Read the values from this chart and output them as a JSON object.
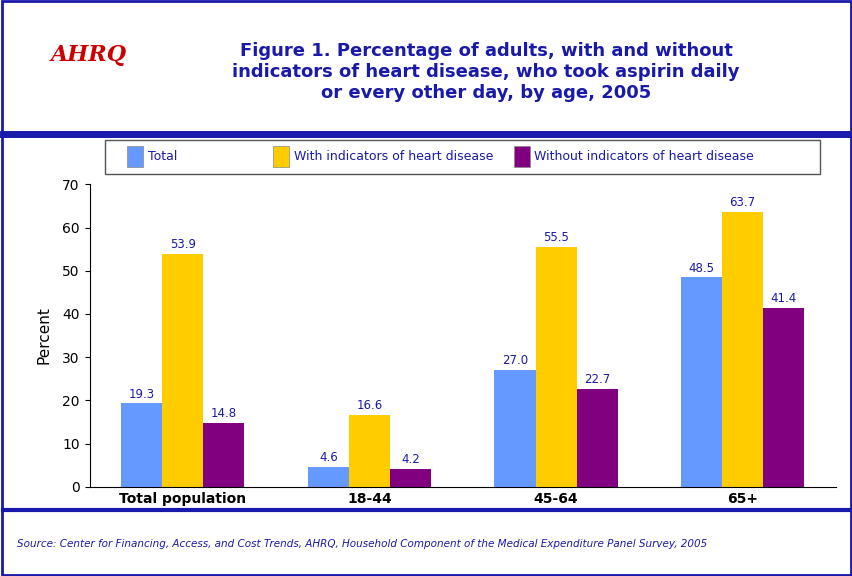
{
  "title": "Figure 1. Percentage of adults, with and without\nindicators of heart disease, who took aspirin daily\nor every other day, by age, 2005",
  "categories": [
    "Total population",
    "18-44",
    "45-64",
    "65+"
  ],
  "series": {
    "Total": [
      19.3,
      4.6,
      27.0,
      48.5
    ],
    "With indicators of heart disease": [
      53.9,
      16.6,
      55.5,
      63.7
    ],
    "Without indicators of heart disease": [
      14.8,
      4.2,
      22.7,
      41.4
    ]
  },
  "colors": {
    "Total": "#6699FF",
    "With indicators of heart disease": "#FFCC00",
    "Without indicators of heart disease": "#800080"
  },
  "ylabel": "Percent",
  "ylim": [
    0,
    70
  ],
  "yticks": [
    0,
    10,
    20,
    30,
    40,
    50,
    60,
    70
  ],
  "source_text": "Source: Center for Financing, Access, and Cost Trends, AHRQ, Household Component of the Medical Expenditure Panel Survey, 2005",
  "header_color": "#1a1aaa",
  "bar_width": 0.22,
  "value_fontsize": 8.5
}
